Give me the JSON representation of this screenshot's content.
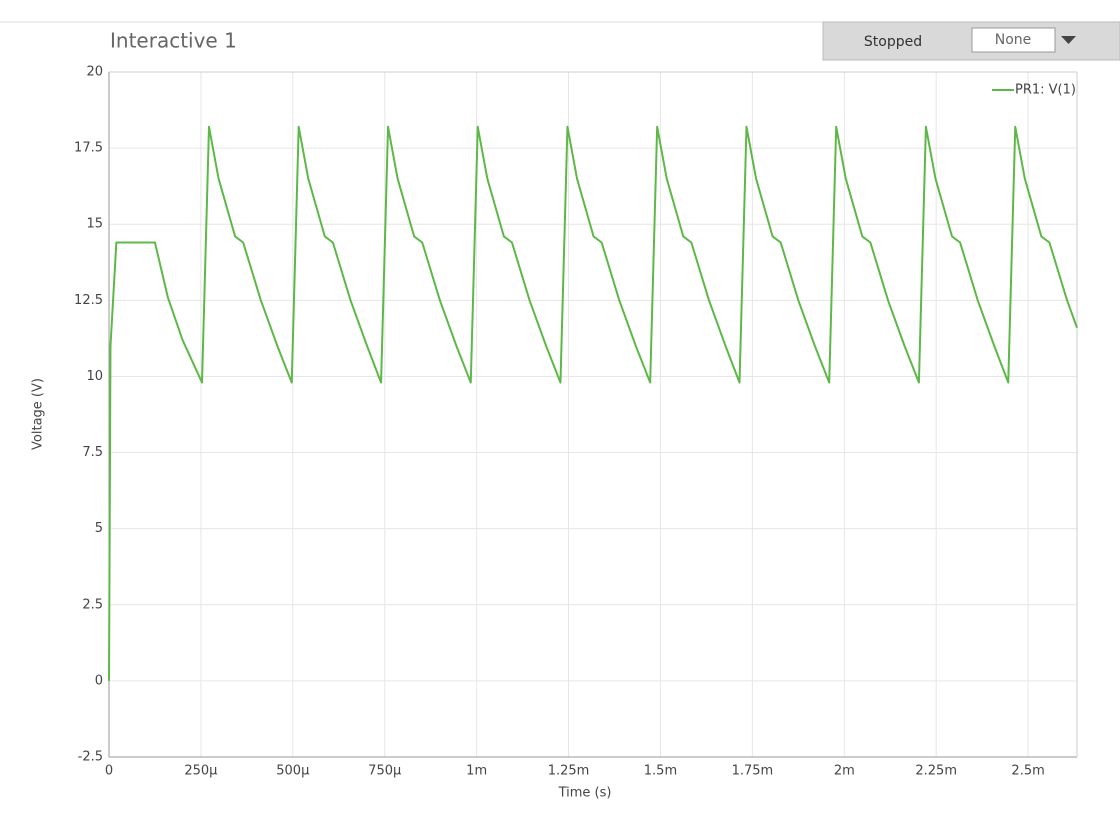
{
  "header": {
    "title": "Interactive 1",
    "status": "Stopped",
    "selection": "None"
  },
  "chart_data": {
    "type": "line",
    "x_label": "Time (s)",
    "y_label": "Voltage (V)",
    "xlim": [
      0,
      0.002633
    ],
    "ylim": [
      -2.5,
      20
    ],
    "xticks": [
      0,
      {
        "value": 0.00025,
        "label": "250µ"
      },
      {
        "value": 0.0005,
        "label": "500µ"
      },
      {
        "value": 0.00075,
        "label": "750µ"
      },
      {
        "value": 0.001,
        "label": "1m"
      },
      {
        "value": 0.00125,
        "label": "1.25m"
      },
      {
        "value": 0.0015,
        "label": "1.5m"
      },
      {
        "value": 0.00175,
        "label": "1.75m"
      },
      {
        "value": 0.002,
        "label": "2m"
      },
      {
        "value": 0.00225,
        "label": "2.25m"
      },
      {
        "value": 0.0025,
        "label": "2.5m"
      }
    ],
    "yticks": [
      -2.5,
      0,
      2.5,
      5,
      7.5,
      10,
      12.5,
      15,
      17.5,
      20
    ],
    "grid": true,
    "legend": "top-right",
    "x": [
      0,
      4e-06,
      2e-05,
      0.000125,
      0.00016,
      0.0002,
      0.000253,
      0.000272,
      0.000298,
      0.000343,
      0.000365,
      0.000413,
      0.000458,
      0.000497,
      0.000516,
      0.000542,
      0.000587,
      0.000609,
      0.000657,
      0.000702,
      0.00074,
      0.000759,
      0.000785,
      0.00083,
      0.000852,
      0.0009,
      0.000945,
      0.000984,
      0.001003,
      0.001029,
      0.001074,
      0.001096,
      0.001144,
      0.001189,
      0.001228,
      0.001247,
      0.001273,
      0.001318,
      0.00134,
      0.001388,
      0.001433,
      0.001472,
      0.001491,
      0.001517,
      0.001562,
      0.001584,
      0.001632,
      0.001677,
      0.001715,
      0.001734,
      0.00176,
      0.001805,
      0.001827,
      0.001875,
      0.00192,
      0.001959,
      0.001978,
      0.002004,
      0.002049,
      0.002071,
      0.002119,
      0.002164,
      0.002203,
      0.002222,
      0.002248,
      0.002293,
      0.002315,
      0.002363,
      0.002408,
      0.002446,
      0.002465,
      0.002491,
      0.002536,
      0.002558,
      0.002606,
      0.002633
    ],
    "series": [
      {
        "name": "PR1: V(1)",
        "color": "#5db847",
        "values": [
          0,
          11,
          14.4,
          14.4,
          12.6,
          11.2,
          9.8,
          18.2,
          16.5,
          14.6,
          14.4,
          12.5,
          11.0,
          9.8,
          18.2,
          16.5,
          14.6,
          14.4,
          12.5,
          11.0,
          9.8,
          18.2,
          16.5,
          14.6,
          14.4,
          12.5,
          11.0,
          9.8,
          18.2,
          16.5,
          14.6,
          14.4,
          12.5,
          11.0,
          9.8,
          18.2,
          16.5,
          14.6,
          14.4,
          12.5,
          11.0,
          9.8,
          18.2,
          16.5,
          14.6,
          14.4,
          12.5,
          11.0,
          9.8,
          18.2,
          16.5,
          14.6,
          14.4,
          12.5,
          11.0,
          9.8,
          18.2,
          16.5,
          14.6,
          14.4,
          12.5,
          11.0,
          9.8,
          18.2,
          16.5,
          14.6,
          14.4,
          12.5,
          11.0,
          9.8,
          18.2,
          16.5,
          14.6,
          14.4,
          12.5,
          11.6
        ]
      }
    ]
  }
}
